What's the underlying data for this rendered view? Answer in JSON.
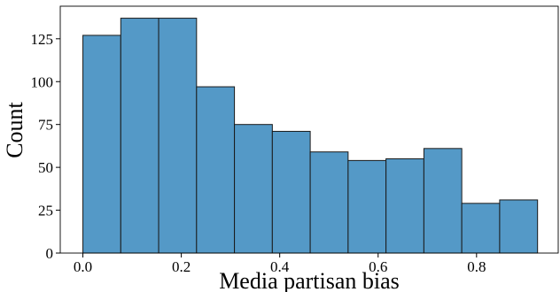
{
  "chart_data": {
    "type": "bar",
    "title": "",
    "xlabel": "Media partisan bias",
    "ylabel": "Count",
    "xlim": [
      -0.046,
      0.966
    ],
    "ylim": [
      0,
      144
    ],
    "xticks": [
      0.0,
      0.2,
      0.4,
      0.6,
      0.8
    ],
    "xtick_labels": [
      "0.0",
      "0.2",
      "0.4",
      "0.6",
      "0.8"
    ],
    "yticks": [
      0,
      25,
      50,
      75,
      100,
      125
    ],
    "ytick_labels": [
      "0",
      "25",
      "50",
      "75",
      "100",
      "125"
    ],
    "bin_edges": [
      0.0,
      0.077,
      0.154,
      0.231,
      0.308,
      0.385,
      0.462,
      0.539,
      0.616,
      0.693,
      0.77,
      0.847,
      0.924
    ],
    "values": [
      127,
      137,
      137,
      97,
      75,
      71,
      59,
      54,
      55,
      61,
      29,
      31
    ],
    "bar_color": "#5499c7",
    "edge_color": "#1a1a1a",
    "grid": false,
    "legend": "none"
  }
}
